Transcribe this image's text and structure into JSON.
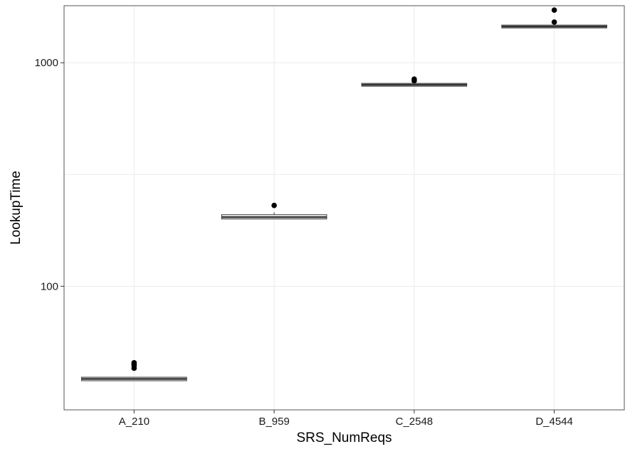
{
  "chart_data": {
    "type": "box",
    "title": "",
    "xlabel": "SRS_NumReqs",
    "ylabel": "LookupTime",
    "yscale": "log10",
    "ylim": [
      28,
      1800
    ],
    "yticks": [
      {
        "value": 100,
        "label": "100"
      },
      {
        "value": 1000,
        "label": "1000"
      }
    ],
    "y_minor_grid": [
      316.2
    ],
    "grid": true,
    "legend": "none",
    "categories": [
      "A_210",
      "B_959",
      "C_2548",
      "D_4544"
    ],
    "boxes": [
      {
        "category": "A_210",
        "whisker_low": 37.8,
        "q1": 37.8,
        "median": 38.5,
        "q3": 39.2,
        "whisker_high": 39.2,
        "outliers": [
          43.0,
          44.2,
          44.9,
          45.5
        ]
      },
      {
        "category": "B_959",
        "whisker_low": 200,
        "q1": 200,
        "median": 204,
        "q3": 209,
        "whisker_high": 214,
        "outliers": [
          230
        ]
      },
      {
        "category": "C_2548",
        "whisker_low": 795,
        "q1": 795,
        "median": 797,
        "q3": 799,
        "whisker_high": 800,
        "outliers": [
          830,
          845
        ]
      },
      {
        "category": "D_4544",
        "whisker_low": 1450,
        "q1": 1450,
        "median": 1453,
        "q3": 1456,
        "whisker_high": 1460,
        "outliers": [
          1520,
          1720
        ]
      }
    ],
    "colors": {
      "grid": "#ebebeb",
      "border": "#555555",
      "box_fill": "#ffffff",
      "box_line": "#333333",
      "outlier": "#000000"
    }
  }
}
